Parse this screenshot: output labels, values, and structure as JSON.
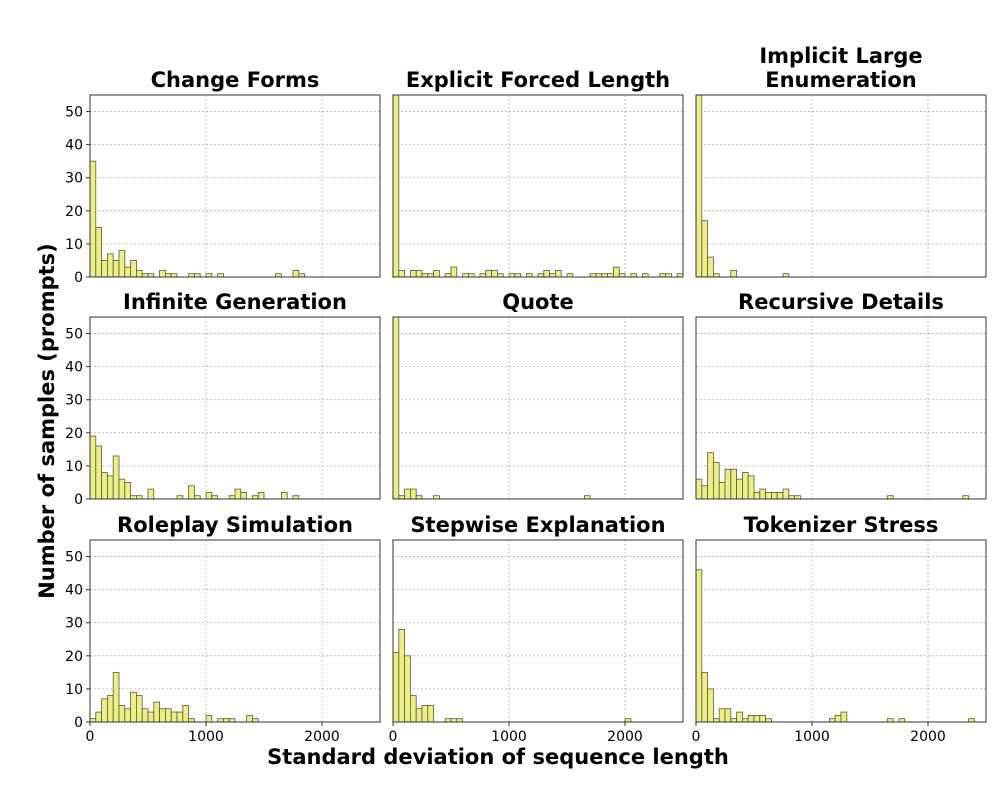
{
  "figure": {
    "xlabel": "Standard deviation of sequence length",
    "ylabel": "Number of samples (prompts)",
    "bar_color": "#eeee88",
    "bar_edge_color": "#5a5a35"
  },
  "chart_data": [
    {
      "type": "bar",
      "title": "Change Forms",
      "xlim": [
        0,
        2500
      ],
      "ylim": [
        0,
        55
      ],
      "xticks": [
        0,
        1000,
        2000
      ],
      "yticks": [
        0,
        10,
        20,
        30,
        40,
        50
      ],
      "grid": true,
      "bin_width": 50,
      "bins": [
        [
          0,
          35
        ],
        [
          50,
          15
        ],
        [
          100,
          5
        ],
        [
          150,
          7
        ],
        [
          200,
          5
        ],
        [
          250,
          8
        ],
        [
          300,
          3
        ],
        [
          350,
          5
        ],
        [
          400,
          2
        ],
        [
          450,
          1
        ],
        [
          500,
          1
        ],
        [
          600,
          2
        ],
        [
          650,
          1
        ],
        [
          700,
          1
        ],
        [
          850,
          1
        ],
        [
          900,
          1
        ],
        [
          1000,
          1
        ],
        [
          1100,
          1
        ],
        [
          1600,
          1
        ],
        [
          1750,
          2
        ],
        [
          1800,
          1
        ]
      ]
    },
    {
      "type": "bar",
      "title": "Explicit Forced Length",
      "xlim": [
        0,
        2500
      ],
      "ylim": [
        0,
        55
      ],
      "xticks": [
        0,
        1000,
        2000
      ],
      "yticks": [
        0,
        10,
        20,
        30,
        40,
        50
      ],
      "grid": true,
      "bin_width": 50,
      "bins": [
        [
          0,
          55
        ],
        [
          50,
          2
        ],
        [
          150,
          2
        ],
        [
          200,
          2
        ],
        [
          250,
          1
        ],
        [
          300,
          1
        ],
        [
          350,
          2
        ],
        [
          450,
          1
        ],
        [
          500,
          3
        ],
        [
          600,
          1
        ],
        [
          650,
          1
        ],
        [
          750,
          1
        ],
        [
          800,
          2
        ],
        [
          850,
          2
        ],
        [
          900,
          1
        ],
        [
          1000,
          1
        ],
        [
          1050,
          1
        ],
        [
          1150,
          1
        ],
        [
          1250,
          1
        ],
        [
          1300,
          2
        ],
        [
          1350,
          1
        ],
        [
          1400,
          2
        ],
        [
          1500,
          1
        ],
        [
          1700,
          1
        ],
        [
          1750,
          1
        ],
        [
          1800,
          1
        ],
        [
          1850,
          1
        ],
        [
          1900,
          3
        ],
        [
          1950,
          1
        ],
        [
          2050,
          1
        ],
        [
          2150,
          1
        ],
        [
          2300,
          1
        ],
        [
          2350,
          1
        ],
        [
          2450,
          1
        ]
      ]
    },
    {
      "type": "bar",
      "title": "Implicit Large\nEnumeration",
      "xlim": [
        0,
        2500
      ],
      "ylim": [
        0,
        55
      ],
      "xticks": [
        0,
        1000,
        2000
      ],
      "yticks": [
        0,
        10,
        20,
        30,
        40,
        50
      ],
      "grid": true,
      "bin_width": 50,
      "bins": [
        [
          0,
          55
        ],
        [
          50,
          17
        ],
        [
          100,
          6
        ],
        [
          150,
          1
        ],
        [
          300,
          2
        ],
        [
          750,
          1
        ]
      ]
    },
    {
      "type": "bar",
      "title": "Infinite Generation",
      "xlim": [
        0,
        2500
      ],
      "ylim": [
        0,
        55
      ],
      "xticks": [
        0,
        1000,
        2000
      ],
      "yticks": [
        0,
        10,
        20,
        30,
        40,
        50
      ],
      "grid": true,
      "bin_width": 50,
      "bins": [
        [
          0,
          19
        ],
        [
          50,
          16
        ],
        [
          100,
          8
        ],
        [
          150,
          7
        ],
        [
          200,
          13
        ],
        [
          250,
          6
        ],
        [
          300,
          5
        ],
        [
          350,
          1
        ],
        [
          400,
          1
        ],
        [
          500,
          3
        ],
        [
          750,
          1
        ],
        [
          850,
          4
        ],
        [
          900,
          1
        ],
        [
          1000,
          2
        ],
        [
          1050,
          1
        ],
        [
          1200,
          1
        ],
        [
          1250,
          3
        ],
        [
          1300,
          2
        ],
        [
          1400,
          1
        ],
        [
          1450,
          2
        ],
        [
          1650,
          2
        ],
        [
          1750,
          1
        ]
      ]
    },
    {
      "type": "bar",
      "title": "Quote",
      "xlim": [
        0,
        2500
      ],
      "ylim": [
        0,
        55
      ],
      "xticks": [
        0,
        1000,
        2000
      ],
      "yticks": [
        0,
        10,
        20,
        30,
        40,
        50
      ],
      "grid": true,
      "bin_width": 50,
      "bins": [
        [
          0,
          55
        ],
        [
          50,
          1
        ],
        [
          100,
          3
        ],
        [
          150,
          3
        ],
        [
          200,
          1
        ],
        [
          350,
          1
        ],
        [
          1650,
          1
        ]
      ]
    },
    {
      "type": "bar",
      "title": "Recursive Details",
      "xlim": [
        0,
        2500
      ],
      "ylim": [
        0,
        55
      ],
      "xticks": [
        0,
        1000,
        2000
      ],
      "yticks": [
        0,
        10,
        20,
        30,
        40,
        50
      ],
      "grid": true,
      "bin_width": 50,
      "bins": [
        [
          0,
          6
        ],
        [
          50,
          4
        ],
        [
          100,
          14
        ],
        [
          150,
          11
        ],
        [
          200,
          5
        ],
        [
          250,
          9
        ],
        [
          300,
          9
        ],
        [
          350,
          6
        ],
        [
          400,
          8
        ],
        [
          450,
          7
        ],
        [
          500,
          2
        ],
        [
          550,
          3
        ],
        [
          600,
          2
        ],
        [
          650,
          2
        ],
        [
          700,
          2
        ],
        [
          750,
          3
        ],
        [
          800,
          1
        ],
        [
          850,
          1
        ],
        [
          1650,
          1
        ],
        [
          2300,
          1
        ]
      ]
    },
    {
      "type": "bar",
      "title": "Roleplay Simulation",
      "xlim": [
        0,
        2500
      ],
      "ylim": [
        0,
        55
      ],
      "xticks": [
        0,
        1000,
        2000
      ],
      "yticks": [
        0,
        10,
        20,
        30,
        40,
        50
      ],
      "grid": true,
      "bin_width": 50,
      "bins": [
        [
          0,
          1
        ],
        [
          50,
          3
        ],
        [
          100,
          7
        ],
        [
          150,
          8
        ],
        [
          200,
          15
        ],
        [
          250,
          5
        ],
        [
          300,
          4
        ],
        [
          350,
          9
        ],
        [
          400,
          8
        ],
        [
          450,
          4
        ],
        [
          500,
          3
        ],
        [
          550,
          6
        ],
        [
          600,
          4
        ],
        [
          650,
          4
        ],
        [
          700,
          3
        ],
        [
          750,
          3
        ],
        [
          800,
          5
        ],
        [
          850,
          1
        ],
        [
          1000,
          2
        ],
        [
          1100,
          1
        ],
        [
          1150,
          1
        ],
        [
          1200,
          1
        ],
        [
          1350,
          2
        ],
        [
          1400,
          1
        ]
      ]
    },
    {
      "type": "bar",
      "title": "Stepwise Explanation",
      "xlim": [
        0,
        2500
      ],
      "ylim": [
        0,
        55
      ],
      "xticks": [
        0,
        1000,
        2000
      ],
      "yticks": [
        0,
        10,
        20,
        30,
        40,
        50
      ],
      "grid": true,
      "bin_width": 50,
      "bins": [
        [
          0,
          21
        ],
        [
          50,
          28
        ],
        [
          100,
          20
        ],
        [
          150,
          8
        ],
        [
          200,
          4
        ],
        [
          250,
          5
        ],
        [
          300,
          5
        ],
        [
          450,
          1
        ],
        [
          500,
          1
        ],
        [
          550,
          1
        ],
        [
          2000,
          1
        ]
      ]
    },
    {
      "type": "bar",
      "title": "Tokenizer Stress",
      "xlim": [
        0,
        2500
      ],
      "ylim": [
        0,
        55
      ],
      "xticks": [
        0,
        1000,
        2000
      ],
      "yticks": [
        0,
        10,
        20,
        30,
        40,
        50
      ],
      "grid": true,
      "bin_width": 50,
      "bins": [
        [
          0,
          46
        ],
        [
          50,
          15
        ],
        [
          100,
          10
        ],
        [
          150,
          1
        ],
        [
          200,
          4
        ],
        [
          250,
          4
        ],
        [
          300,
          1
        ],
        [
          350,
          3
        ],
        [
          400,
          1
        ],
        [
          450,
          2
        ],
        [
          500,
          2
        ],
        [
          550,
          2
        ],
        [
          600,
          1
        ],
        [
          1150,
          1
        ],
        [
          1200,
          2
        ],
        [
          1250,
          3
        ],
        [
          1650,
          1
        ],
        [
          1750,
          1
        ],
        [
          2350,
          1
        ]
      ]
    }
  ]
}
